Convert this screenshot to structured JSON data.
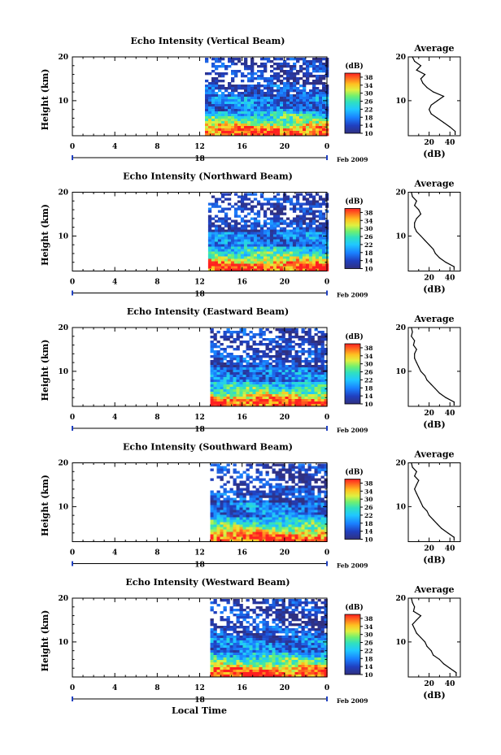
{
  "figure": {
    "xlabel": "Local Time"
  },
  "chart_data": [
    {
      "type": "heatmap",
      "title": "Echo Intensity (Vertical Beam)",
      "ylabel": "Height (km)",
      "xlim": [
        0,
        24
      ],
      "ylim": [
        2,
        20
      ],
      "xticks": [
        "0",
        "4",
        "8",
        "12",
        "16",
        "20",
        "0"
      ],
      "yticks": [
        "10",
        "20"
      ],
      "date_label": "Feb 2009",
      "day_label": "18",
      "colorbar": {
        "label": "(dB)",
        "ticks": [
          "38",
          "34",
          "30",
          "26",
          "22",
          "18",
          "14",
          "10"
        ],
        "range": [
          10,
          40
        ]
      },
      "data_start_hour": 12.5,
      "average": {
        "title": "Average",
        "xlabel": "(dB)",
        "xticks": [
          "20",
          "40"
        ],
        "xlim": [
          0,
          50
        ],
        "ylim": [
          2,
          20
        ],
        "yticks": [
          "10",
          "20"
        ],
        "heights": [
          3,
          4,
          5,
          6,
          7,
          8,
          9,
          10,
          11,
          12,
          13,
          14,
          15,
          16,
          17,
          18,
          19,
          20
        ],
        "db": [
          45,
          40,
          34,
          28,
          22,
          20,
          22,
          28,
          34,
          24,
          18,
          14,
          12,
          16,
          8,
          12,
          6,
          4
        ]
      }
    },
    {
      "type": "heatmap",
      "title": "Echo Intensity (Northward Beam)",
      "ylabel": "Height (km)",
      "xlim": [
        0,
        24
      ],
      "ylim": [
        2,
        20
      ],
      "xticks": [
        "0",
        "4",
        "8",
        "12",
        "16",
        "20",
        "0"
      ],
      "yticks": [
        "10",
        "20"
      ],
      "date_label": "Feb 2009",
      "day_label": "18",
      "colorbar": {
        "label": "(dB)",
        "ticks": [
          "38",
          "34",
          "30",
          "26",
          "22",
          "18",
          "14",
          "10"
        ],
        "range": [
          10,
          40
        ]
      },
      "data_start_hour": 12.8,
      "average": {
        "title": "Average",
        "xlabel": "(dB)",
        "xticks": [
          "20",
          "40"
        ],
        "xlim": [
          0,
          50
        ],
        "ylim": [
          2,
          20
        ],
        "yticks": [
          "10",
          "20"
        ],
        "heights": [
          3,
          4,
          5,
          6,
          7,
          8,
          9,
          10,
          11,
          12,
          13,
          14,
          15,
          16,
          17,
          18,
          19,
          20
        ],
        "db": [
          44,
          36,
          30,
          26,
          24,
          20,
          16,
          12,
          8,
          6,
          6,
          8,
          12,
          10,
          6,
          8,
          4,
          3
        ]
      }
    },
    {
      "type": "heatmap",
      "title": "Echo Intensity (Eastward Beam)",
      "ylabel": "Height (km)",
      "xlim": [
        0,
        24
      ],
      "ylim": [
        2,
        20
      ],
      "xticks": [
        "0",
        "4",
        "8",
        "12",
        "16",
        "20",
        "0"
      ],
      "yticks": [
        "10",
        "20"
      ],
      "date_label": "Feb 2009",
      "day_label": "18",
      "colorbar": {
        "label": "(dB)",
        "ticks": [
          "38",
          "34",
          "30",
          "26",
          "22",
          "18",
          "14",
          "10"
        ],
        "range": [
          10,
          40
        ]
      },
      "data_start_hour": 13.0,
      "average": {
        "title": "Average",
        "xlabel": "(dB)",
        "xticks": [
          "20",
          "40"
        ],
        "xlim": [
          0,
          50
        ],
        "ylim": [
          2,
          20
        ],
        "yticks": [
          "10",
          "20"
        ],
        "heights": [
          3,
          4,
          5,
          6,
          7,
          8,
          9,
          10,
          11,
          12,
          13,
          14,
          15,
          16,
          17,
          18,
          19,
          20
        ],
        "db": [
          44,
          36,
          30,
          26,
          22,
          18,
          16,
          12,
          10,
          8,
          6,
          6,
          8,
          5,
          6,
          3,
          4,
          3
        ]
      }
    },
    {
      "type": "heatmap",
      "title": "Echo Intensity (Southward Beam)",
      "ylabel": "Height (km)",
      "xlim": [
        0,
        24
      ],
      "ylim": [
        2,
        20
      ],
      "xticks": [
        "0",
        "4",
        "8",
        "12",
        "16",
        "20",
        "0"
      ],
      "yticks": [
        "10",
        "20"
      ],
      "date_label": "Feb 2009",
      "day_label": "18",
      "colorbar": {
        "label": "(dB)",
        "ticks": [
          "38",
          "34",
          "30",
          "26",
          "22",
          "18",
          "14",
          "10"
        ],
        "range": [
          10,
          40
        ]
      },
      "data_start_hour": 13.0,
      "average": {
        "title": "Average",
        "xlabel": "(dB)",
        "xticks": [
          "20",
          "40"
        ],
        "xlim": [
          0,
          50
        ],
        "ylim": [
          2,
          20
        ],
        "yticks": [
          "10",
          "20"
        ],
        "heights": [
          3,
          4,
          5,
          6,
          7,
          8,
          9,
          10,
          11,
          12,
          13,
          14,
          15,
          16,
          17,
          18,
          19,
          20
        ],
        "db": [
          44,
          38,
          32,
          28,
          24,
          20,
          18,
          14,
          12,
          10,
          8,
          6,
          8,
          10,
          6,
          8,
          4,
          3
        ]
      }
    },
    {
      "type": "heatmap",
      "title": "Echo Intensity (Westward Beam)",
      "ylabel": "Height (km)",
      "xlim": [
        0,
        24
      ],
      "ylim": [
        2,
        20
      ],
      "xticks": [
        "0",
        "4",
        "8",
        "12",
        "16",
        "20",
        "0"
      ],
      "yticks": [
        "10",
        "20"
      ],
      "date_label": "Feb 2009",
      "day_label": "18",
      "colorbar": {
        "label": "(dB)",
        "ticks": [
          "38",
          "34",
          "30",
          "26",
          "22",
          "18",
          "14",
          "10"
        ],
        "range": [
          10,
          40
        ]
      },
      "data_start_hour": 13.0,
      "average": {
        "title": "Average",
        "xlabel": "(dB)",
        "xticks": [
          "20",
          "40"
        ],
        "xlim": [
          0,
          50
        ],
        "ylim": [
          2,
          20
        ],
        "yticks": [
          "10",
          "20"
        ],
        "heights": [
          3,
          4,
          5,
          6,
          7,
          8,
          9,
          10,
          11,
          12,
          13,
          14,
          15,
          16,
          17,
          18,
          19,
          20
        ],
        "db": [
          46,
          40,
          34,
          30,
          24,
          22,
          18,
          16,
          12,
          8,
          6,
          4,
          8,
          12,
          5,
          6,
          4,
          3
        ]
      }
    }
  ]
}
